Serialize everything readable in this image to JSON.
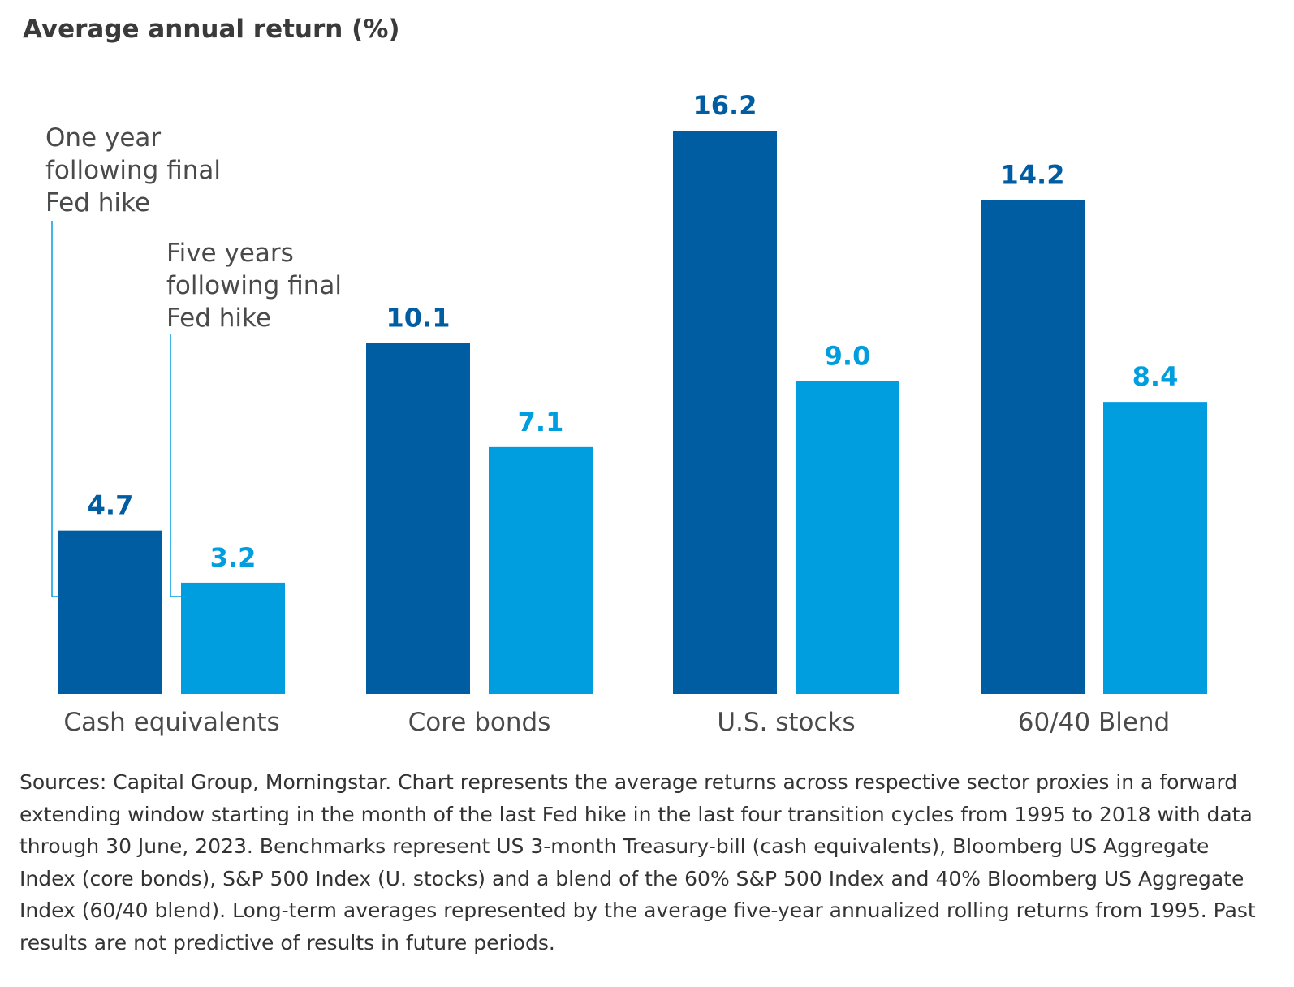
{
  "chart_data": {
    "type": "bar",
    "title": "Average annual return (%)",
    "categories": [
      "Cash equivalents",
      "Core bonds",
      "U.S. stocks",
      "60/40 Blend"
    ],
    "series": [
      {
        "name": "One year\nfollowing final\nFed hike",
        "values": [
          4.7,
          10.1,
          16.2,
          14.2
        ],
        "color": "#005da2"
      },
      {
        "name": "Five years\nfollowing final\nFed hike",
        "values": [
          3.2,
          7.1,
          9.0,
          8.4
        ],
        "color": "#009ddf"
      }
    ],
    "value_labels": [
      [
        "4.7",
        "10.1",
        "16.2",
        "14.2"
      ],
      [
        "3.2",
        "7.1",
        "9.0",
        "8.4"
      ]
    ],
    "ylim": [
      0,
      16.2
    ],
    "grid": false,
    "legend": "annotation-left"
  },
  "footnote": "Sources: Capital Group, Morningstar. Chart represents the average returns across respective sector proxies in a forward extending window starting in the month of the last Fed hike in the last four transition cycles from 1995 to 2018 with data through 30 June, 2023. Benchmarks represent US 3-month Treasury-bill (cash equivalents), Bloomberg US Aggregate Index (core bonds), S&P 500 Index (U. stocks) and a blend of the 60% S&P 500 Index and 40% Bloomberg US Aggregate Index (60/40 blend). Long-term averages represented by the average five-year annualized rolling returns from 1995. Past results are not predictive of results in future periods."
}
